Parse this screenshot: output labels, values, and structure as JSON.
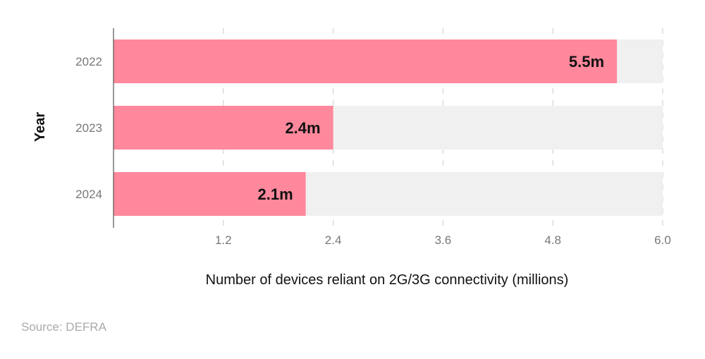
{
  "chart_data": {
    "type": "bar",
    "orientation": "horizontal",
    "categories": [
      "2022",
      "2023",
      "2024"
    ],
    "values": [
      5.5,
      2.4,
      2.1
    ],
    "data_labels": [
      "5.5m",
      "2.4m",
      "2.1m"
    ],
    "xlabel": "Number of devices reliant on 2G/3G connectivity (millions)",
    "ylabel": "Year",
    "xlim": [
      0,
      6.0
    ],
    "xticks": [
      1.2,
      2.4,
      3.6,
      4.8,
      6.0
    ],
    "xtick_labels": [
      "1.2",
      "2.4",
      "3.6",
      "4.8",
      "6.0"
    ],
    "grid": "vertical dashed",
    "legend": "none"
  },
  "source": "Source: DEFRA",
  "colors": {
    "bar": "#ff889c",
    "track": "#f1f0f0",
    "grid": "#d4d4d4",
    "axis": "#555555",
    "tick_text": "#777777",
    "label_text": "#111111",
    "source_text": "#aaaaaa"
  }
}
